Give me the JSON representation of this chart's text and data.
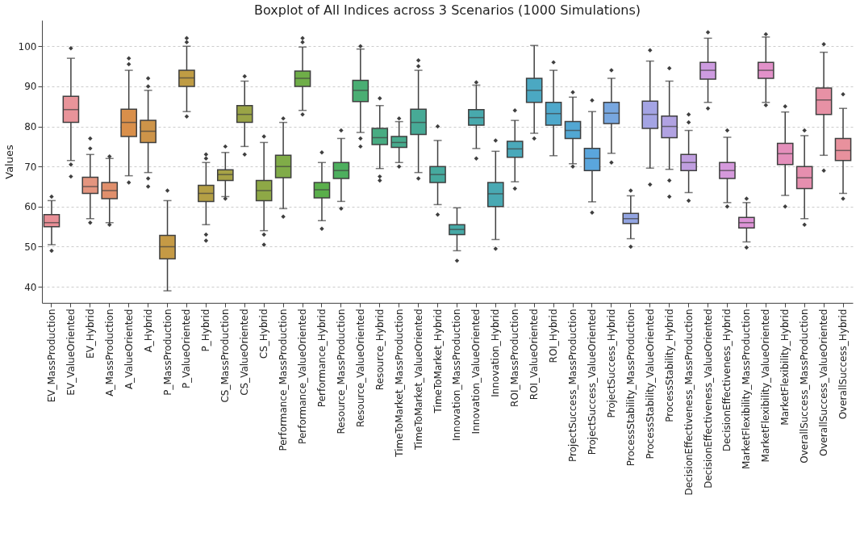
{
  "chart_data": {
    "type": "box",
    "title": "Boxplot of All Indices across 3 Scenarios (1000 Simulations)",
    "ylabel": "Values",
    "categories": [
      "EV_MassProduction",
      "EV_ValueOriented",
      "EV_Hybrid",
      "A_MassProduction",
      "A_ValueOriented",
      "A_Hybrid",
      "P_MassProduction",
      "P_ValueOriented",
      "P_Hybrid",
      "CS_MassProduction",
      "CS_ValueOriented",
      "CS_Hybrid",
      "Performance_MassProduction",
      "Performance_ValueOriented",
      "Performance_Hybrid",
      "Resource_MassProduction",
      "Resource_ValueOriented",
      "Resource_Hybrid",
      "TimeToMarket_MassProduction",
      "TimeToMarket_ValueOriented",
      "TimeToMarket_Hybrid",
      "Innovation_MassProduction",
      "Innovation_ValueOriented",
      "Innovation_Hybrid",
      "ROI_MassProduction",
      "ROI_ValueOriented",
      "ROI_Hybrid",
      "ProjectSuccess_MassProduction",
      "ProjectSuccess_ValueOriented",
      "ProjectSuccess_Hybrid",
      "ProcessStability_MassProduction",
      "ProcessStability_ValueOriented",
      "ProcessStability_Hybrid",
      "DecisionEffectiveness_MassProduction",
      "DecisionEffectiveness_ValueOriented",
      "DecisionEffectiveness_Hybrid",
      "MarketFlexibility_MassProduction",
      "MarketFlexibility_ValueOriented",
      "MarketFlexibility_Hybrid",
      "OverallSuccess_MassProduction",
      "OverallSuccess_ValueOriented",
      "OverallSuccess_Hybrid"
    ],
    "colors": [
      "#e88f96",
      "#e8949a",
      "#e4957f",
      "#e08f6c",
      "#d98f4a",
      "#cd9449",
      "#c59a45",
      "#bf9c44",
      "#b49f45",
      "#a7a246",
      "#9aa446",
      "#8ea846",
      "#80ac48",
      "#6fae48",
      "#5aaf4b",
      "#4daf5e",
      "#4aae73",
      "#48ac82",
      "#47ab8d",
      "#47aa96",
      "#46aa9e",
      "#46a9a6",
      "#48a9ad",
      "#49a9b3",
      "#4aa9ba",
      "#4ba8c2",
      "#4ea8cb",
      "#52a7d3",
      "#5aa6dd",
      "#78a7e0",
      "#93a5e2",
      "#a4a4e4",
      "#b1a2e2",
      "#c09ee0",
      "#cd9be0",
      "#d599dc",
      "#de94d7",
      "#e291c9",
      "#e48fbb",
      "#e68faf",
      "#e791a5",
      "#e8919d"
    ],
    "boxes": [
      {
        "low": 50.5,
        "q1": 55,
        "median": 56,
        "q3": 58,
        "high": 61.5,
        "outliers": [
          49,
          62.5
        ]
      },
      {
        "low": 71.5,
        "q1": 81,
        "median": 84.2,
        "q3": 87.5,
        "high": 97,
        "outliers": [
          67.5,
          70.5,
          99.5
        ]
      },
      {
        "low": 57,
        "q1": 63.3,
        "median": 65,
        "q3": 67.3,
        "high": 73,
        "outliers": [
          56,
          74.5,
          77
        ]
      },
      {
        "low": 56,
        "q1": 62,
        "median": 64,
        "q3": 66,
        "high": 72,
        "outliers": [
          55.5,
          72.5
        ]
      },
      {
        "low": 67.7,
        "q1": 77.5,
        "median": 81,
        "q3": 84.3,
        "high": 94,
        "outliers": [
          66,
          95.5,
          97
        ]
      },
      {
        "low": 68.5,
        "q1": 76,
        "median": 78.8,
        "q3": 81.5,
        "high": 89,
        "outliers": [
          65,
          67,
          90,
          92
        ]
      },
      {
        "low": 39,
        "q1": 47,
        "median": 50,
        "q3": 52.8,
        "high": 61.5,
        "outliers": [
          64
        ]
      },
      {
        "low": 83.7,
        "q1": 90,
        "median": 92.1,
        "q3": 94,
        "high": 100,
        "outliers": [
          82.5,
          101,
          102
        ]
      },
      {
        "low": 55.5,
        "q1": 61.3,
        "median": 63.3,
        "q3": 65.3,
        "high": 71,
        "outliers": [
          51.5,
          53,
          72,
          73
        ]
      },
      {
        "low": 62.5,
        "q1": 66.5,
        "median": 68,
        "q3": 69.2,
        "high": 73.5,
        "outliers": [
          62,
          75
        ]
      },
      {
        "low": 75,
        "q1": 81,
        "median": 83,
        "q3": 85.2,
        "high": 91.3,
        "outliers": [
          73,
          92.5
        ]
      },
      {
        "low": 54,
        "q1": 61.5,
        "median": 64,
        "q3": 66.5,
        "high": 76,
        "outliers": [
          50.5,
          53,
          77.5
        ]
      },
      {
        "low": 59.5,
        "q1": 67.2,
        "median": 70,
        "q3": 72.8,
        "high": 81,
        "outliers": [
          57.5,
          82
        ]
      },
      {
        "low": 84,
        "q1": 90,
        "median": 92,
        "q3": 93.8,
        "high": 99.8,
        "outliers": [
          83,
          101,
          102
        ]
      },
      {
        "low": 56.5,
        "q1": 62.2,
        "median": 64.2,
        "q3": 66,
        "high": 71,
        "outliers": [
          54.5,
          73.5
        ]
      },
      {
        "low": 61.3,
        "q1": 67,
        "median": 69,
        "q3": 71,
        "high": 77,
        "outliers": [
          59.5,
          79
        ]
      },
      {
        "low": 78.5,
        "q1": 86.2,
        "median": 89,
        "q3": 91.5,
        "high": 99.3,
        "outliers": [
          75,
          77,
          100
        ]
      },
      {
        "low": 69.5,
        "q1": 75.5,
        "median": 77.2,
        "q3": 79.5,
        "high": 85.2,
        "outliers": [
          66.5,
          67.5,
          87
        ]
      },
      {
        "low": 71,
        "q1": 74.8,
        "median": 76,
        "q3": 77.5,
        "high": 81.2,
        "outliers": [
          70,
          82
        ]
      },
      {
        "low": 68.5,
        "q1": 78,
        "median": 81,
        "q3": 84.3,
        "high": 94,
        "outliers": [
          67,
          95,
          96.5
        ]
      },
      {
        "low": 60.5,
        "q1": 66,
        "median": 68,
        "q3": 70,
        "high": 76.5,
        "outliers": [
          58,
          80
        ]
      },
      {
        "low": 49,
        "q1": 53,
        "median": 54.3,
        "q3": 55.5,
        "high": 59.7,
        "outliers": [
          46.5
        ]
      },
      {
        "low": 74.5,
        "q1": 80.3,
        "median": 82.2,
        "q3": 84.2,
        "high": 90.3,
        "outliers": [
          72,
          91
        ]
      },
      {
        "low": 51.8,
        "q1": 60,
        "median": 63.2,
        "q3": 66,
        "high": 73.8,
        "outliers": [
          49.5,
          76.5
        ]
      },
      {
        "low": 66.2,
        "q1": 72.3,
        "median": 74.4,
        "q3": 76.3,
        "high": 81.5,
        "outliers": [
          64.5,
          84
        ]
      },
      {
        "low": 78.3,
        "q1": 86,
        "median": 89,
        "q3": 92,
        "high": 100.2,
        "outliers": [
          77
        ]
      },
      {
        "low": 72.7,
        "q1": 80.3,
        "median": 83.2,
        "q3": 86,
        "high": 94,
        "outliers": [
          96
        ]
      },
      {
        "low": 70.7,
        "q1": 77,
        "median": 79,
        "q3": 81.2,
        "high": 87.3,
        "outliers": [
          70,
          88.5
        ]
      },
      {
        "low": 61.2,
        "q1": 69,
        "median": 72,
        "q3": 74.5,
        "high": 83.7,
        "outliers": [
          58.5,
          86.5
        ]
      },
      {
        "low": 73.3,
        "q1": 80.7,
        "median": 83.3,
        "q3": 86,
        "high": 92,
        "outliers": [
          71,
          94
        ]
      },
      {
        "low": 52,
        "q1": 55.8,
        "median": 57,
        "q3": 58.3,
        "high": 62.7,
        "outliers": [
          50,
          64
        ]
      },
      {
        "low": 69.6,
        "q1": 79.5,
        "median": 83,
        "q3": 86.3,
        "high": 96.3,
        "outliers": [
          65.5,
          99
        ]
      },
      {
        "low": 69.3,
        "q1": 77.2,
        "median": 80,
        "q3": 82.6,
        "high": 91.3,
        "outliers": [
          62.5,
          66.5,
          94.5
        ]
      },
      {
        "low": 63.5,
        "q1": 69,
        "median": 71,
        "q3": 73,
        "high": 79,
        "outliers": [
          61.5,
          81,
          83
        ]
      },
      {
        "low": 86,
        "q1": 91.8,
        "median": 94,
        "q3": 96,
        "high": 102,
        "outliers": [
          84.5,
          103.5
        ]
      },
      {
        "low": 61,
        "q1": 67,
        "median": 69,
        "q3": 71,
        "high": 77.3,
        "outliers": [
          60,
          79
        ]
      },
      {
        "low": 51.2,
        "q1": 54.7,
        "median": 56,
        "q3": 57.3,
        "high": 61,
        "outliers": [
          49.8,
          62
        ]
      },
      {
        "low": 86,
        "q1": 92,
        "median": 94,
        "q3": 96,
        "high": 102.3,
        "outliers": [
          85.3,
          103
        ]
      },
      {
        "low": 62.8,
        "q1": 70.5,
        "median": 73.2,
        "q3": 75.8,
        "high": 83.6,
        "outliers": [
          60,
          85
        ]
      },
      {
        "low": 57,
        "q1": 64.5,
        "median": 67.2,
        "q3": 70,
        "high": 77.7,
        "outliers": [
          55.5,
          79
        ]
      },
      {
        "low": 72.8,
        "q1": 83,
        "median": 86.6,
        "q3": 89.6,
        "high": 98.5,
        "outliers": [
          69,
          100.5
        ]
      },
      {
        "low": 63.3,
        "q1": 71.5,
        "median": 74,
        "q3": 77,
        "high": 84.5,
        "outliers": [
          62,
          88
        ]
      }
    ],
    "ylim": [
      36,
      106.5
    ],
    "yticks": [
      40,
      50,
      60,
      70,
      80,
      90,
      100
    ],
    "grid": "y"
  }
}
